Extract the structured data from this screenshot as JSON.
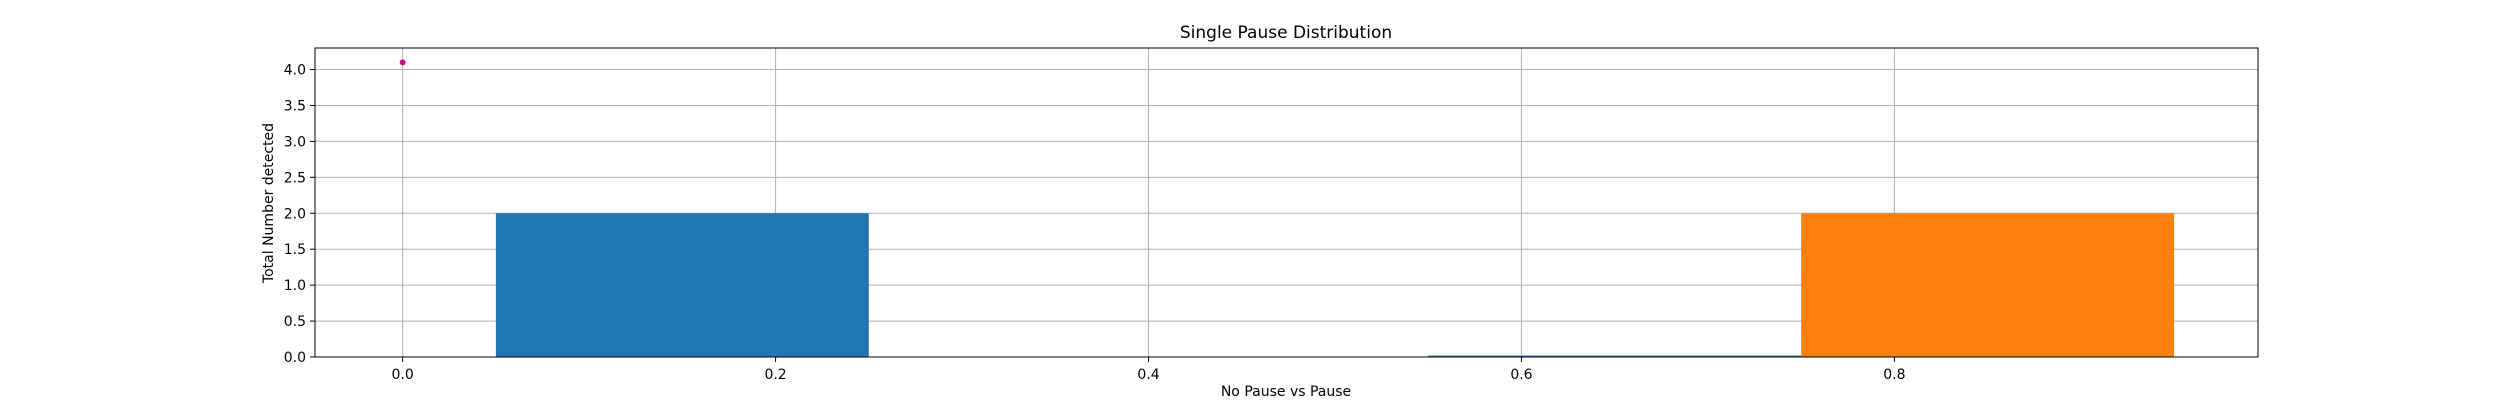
{
  "chart_data": {
    "type": "bar",
    "title": "Single Pause Distribution",
    "xlabel": "No Pause vs Pause",
    "ylabel": "Total Number detected",
    "xlim": [
      -0.047,
      0.995
    ],
    "ylim": [
      0,
      4.3
    ],
    "xticks": [
      0.0,
      0.2,
      0.4,
      0.6,
      0.8
    ],
    "xtick_labels": [
      "0.0",
      "0.2",
      "0.4",
      "0.6",
      "0.8"
    ],
    "yticks": [
      0.0,
      0.5,
      1.0,
      1.5,
      2.0,
      2.5,
      3.0,
      3.5,
      4.0
    ],
    "ytick_labels": [
      "0.0",
      "0.5",
      "1.0",
      "1.5",
      "2.0",
      "2.5",
      "3.0",
      "3.5",
      "4.0"
    ],
    "grid": true,
    "series": [
      {
        "color": "#1f77b4",
        "bars": [
          {
            "x0": 0.05,
            "x1": 0.25,
            "value": 2.0
          },
          {
            "x0": 0.55,
            "x1": 0.75,
            "value": 0.02
          }
        ]
      },
      {
        "color": "#ff7f0e",
        "bars": [
          {
            "x0": 0.75,
            "x1": 0.95,
            "value": 2.0
          }
        ]
      }
    ],
    "points": [
      {
        "x": 0.0,
        "y": 4.1,
        "color": "#c71585"
      }
    ]
  }
}
